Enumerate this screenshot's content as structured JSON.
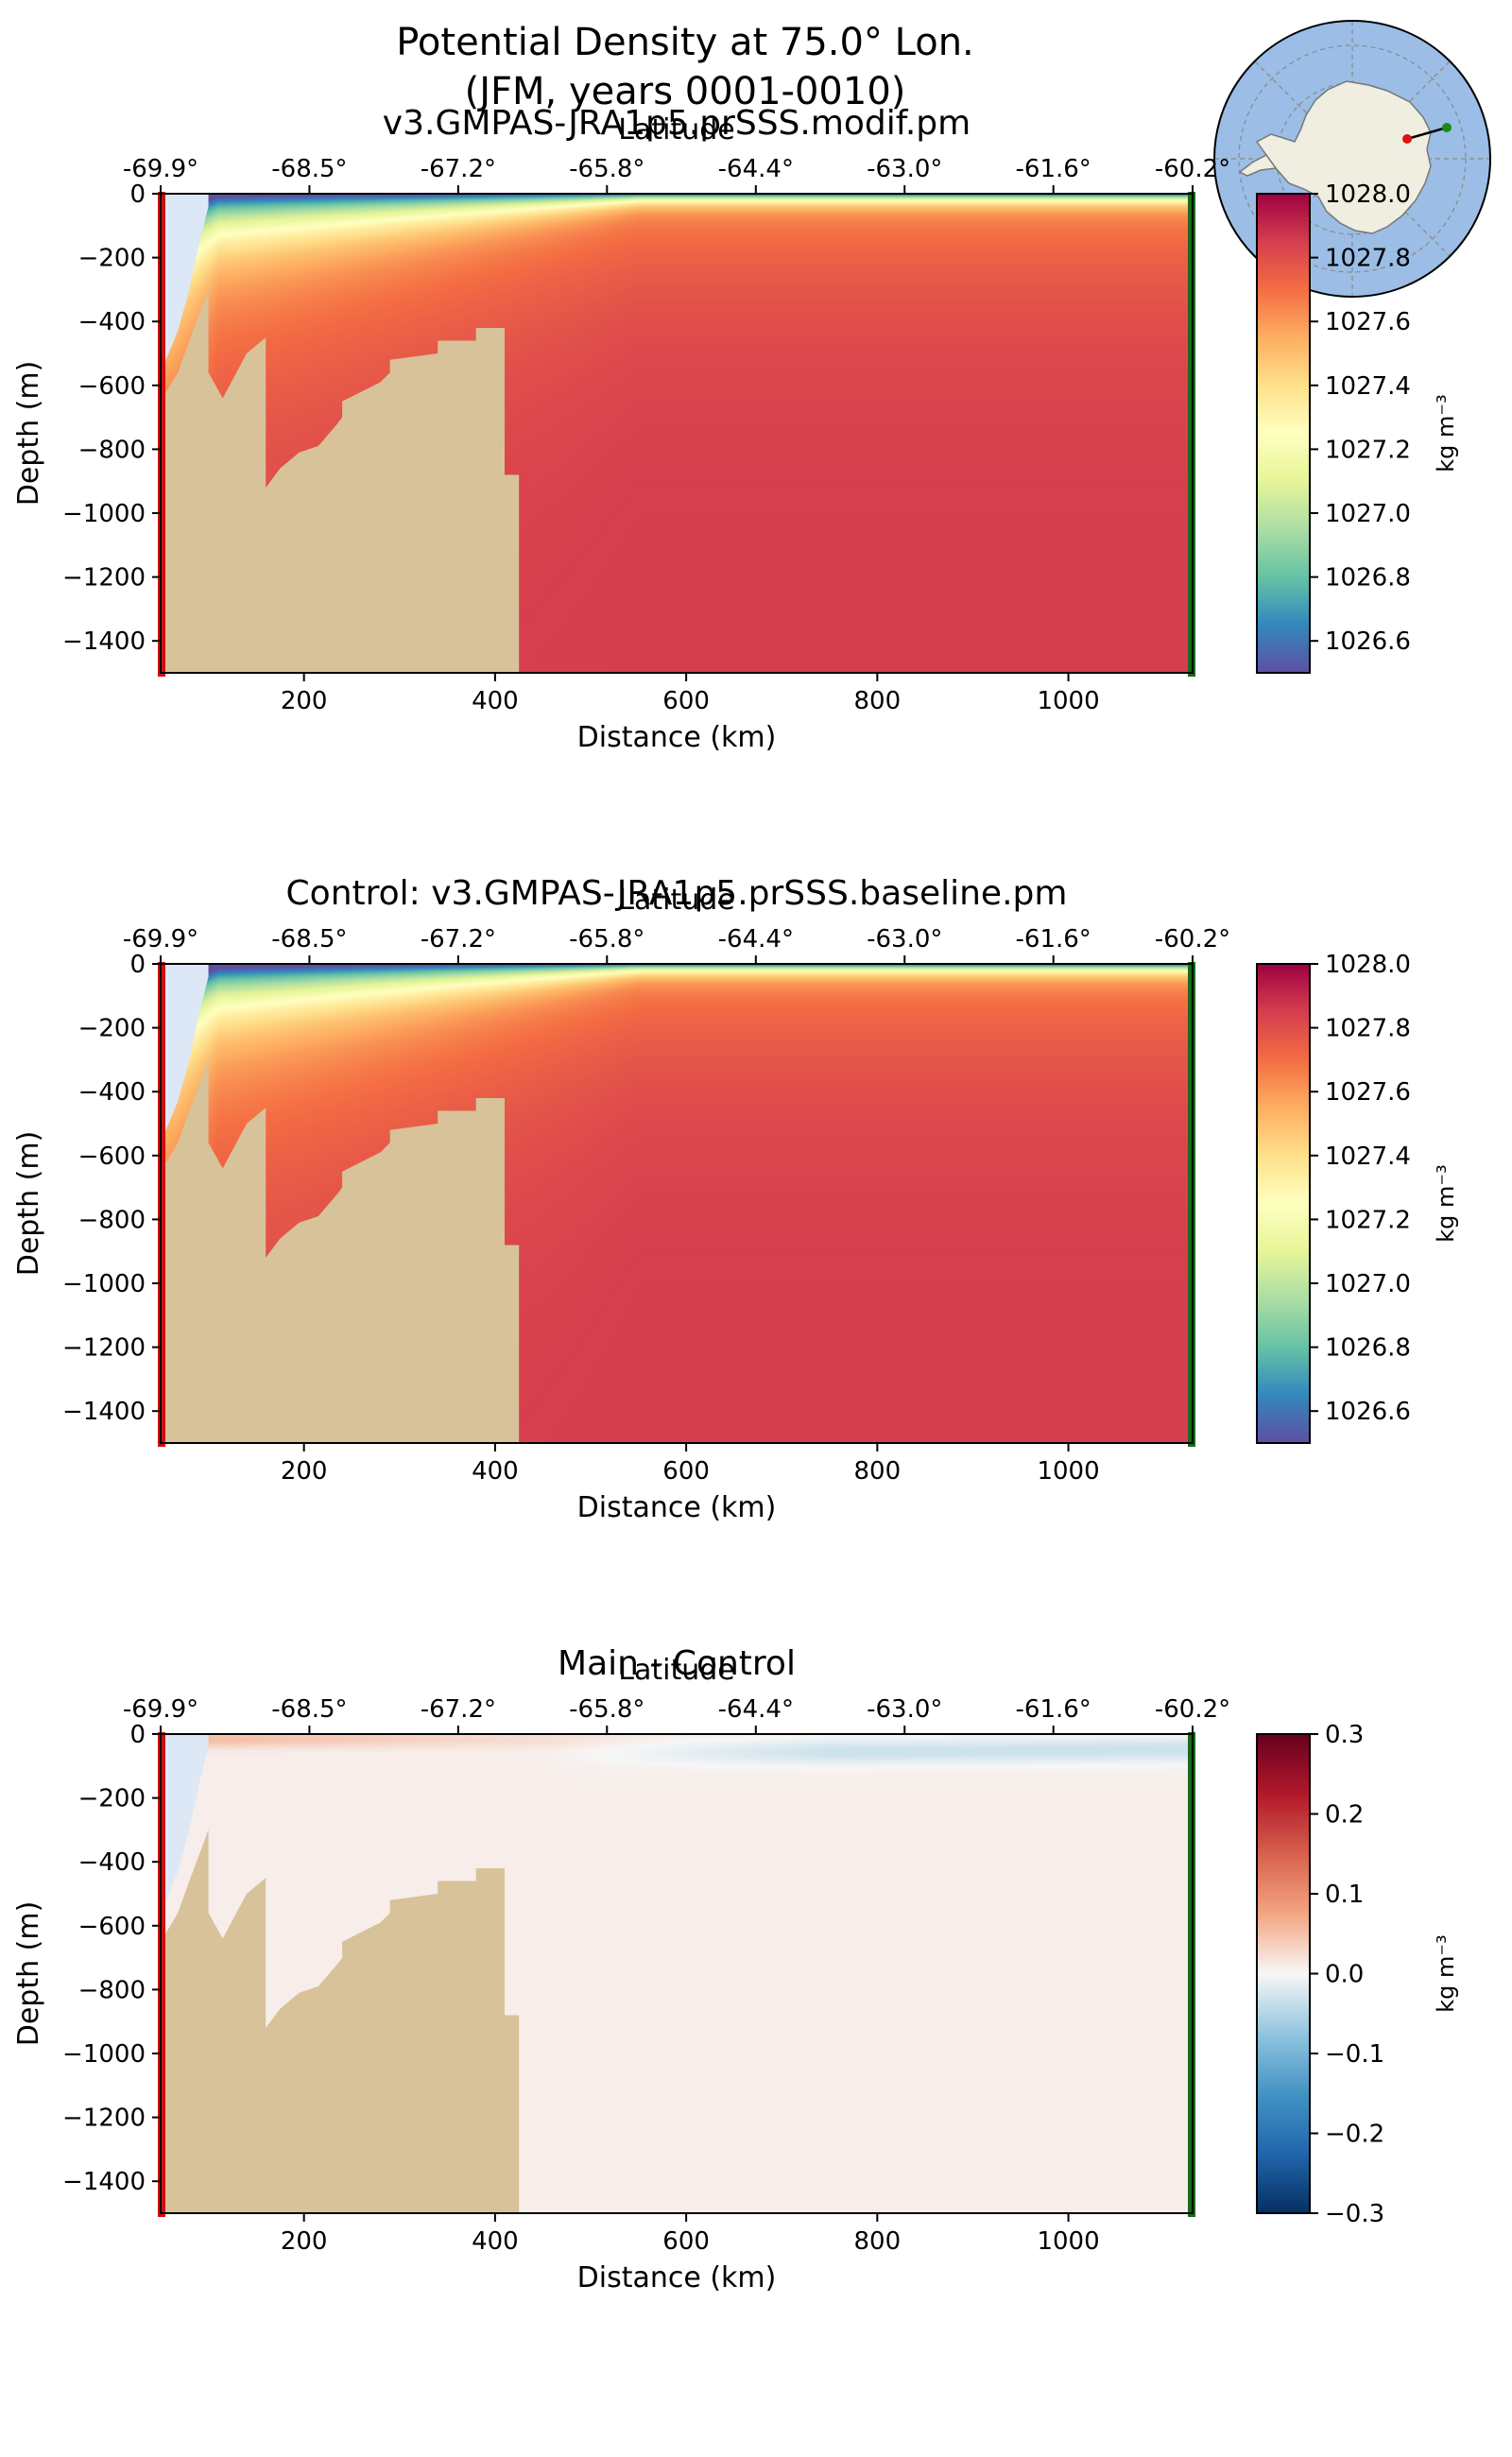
{
  "figure": {
    "title_line1": "Potential Density at 75.0° Lon.",
    "title_line2": "(JFM, years 0001-0010)"
  },
  "colors": {
    "land": "#d8c29a",
    "ice": "#dce8f6",
    "start_marker": "#cc1111",
    "end_marker": "#1a6b1a",
    "ocean": "#9bbde6",
    "antarctica": "#efeee0"
  },
  "chart_data": [
    {
      "type": "heatmap",
      "title": "v3.GMPAS-JRA1p5.prSSS.modif.pm",
      "xlabel": "Distance (km)",
      "ylabel": "Depth (m)",
      "top_xlabel": "Latitude",
      "xlim": [
        50,
        1130
      ],
      "ylim": [
        -1500,
        0
      ],
      "xticks": [
        200,
        400,
        600,
        800,
        1000
      ],
      "xtick_labels": [
        "200",
        "400",
        "600",
        "800",
        "1000"
      ],
      "yticks": [
        0,
        -200,
        -400,
        -600,
        -800,
        -1000,
        -1200,
        -1400
      ],
      "ytick_labels": [
        "0",
        "−200",
        "−400",
        "−600",
        "−800",
        "−1000",
        "−1200",
        "−1400"
      ],
      "top_ticks": [
        50,
        205.7,
        361.4,
        517.1,
        672.9,
        828.6,
        984.3,
        1130
      ],
      "top_tick_labels": [
        "-69.9°",
        "-68.5°",
        "-67.2°",
        "-65.8°",
        "-64.4°",
        "-63.0°",
        "-61.6°",
        "-60.2°"
      ],
      "colorbar": {
        "label": "kg m⁻³",
        "range": [
          1026.5,
          1028.0
        ],
        "ticks": [
          1028.0,
          1027.8,
          1027.6,
          1027.4,
          1027.2,
          1027.0,
          1026.8,
          1026.6
        ],
        "tick_labels": [
          "1028.0",
          "1027.8",
          "1027.6",
          "1027.4",
          "1027.2",
          "1027.0",
          "1026.8",
          "1026.6"
        ],
        "colormap": "Spectral_r"
      },
      "bathymetry": [
        [
          50,
          -1500
        ],
        [
          50,
          -650
        ],
        [
          68,
          -560
        ],
        [
          80,
          -460
        ],
        [
          90,
          -380
        ],
        [
          100,
          -300
        ],
        [
          100,
          -560
        ],
        [
          115,
          -640
        ],
        [
          140,
          -500
        ],
        [
          160,
          -450
        ],
        [
          160,
          -920
        ],
        [
          175,
          -860
        ],
        [
          195,
          -810
        ],
        [
          215,
          -790
        ],
        [
          235,
          -720
        ],
        [
          240,
          -700
        ],
        [
          240,
          -650
        ],
        [
          280,
          -590
        ],
        [
          290,
          -560
        ],
        [
          290,
          -520
        ],
        [
          340,
          -500
        ],
        [
          340,
          -460
        ],
        [
          380,
          -460
        ],
        [
          380,
          -420
        ],
        [
          410,
          -420
        ],
        [
          410,
          -880
        ],
        [
          425,
          -880
        ],
        [
          425,
          -1500
        ]
      ],
      "depth_profile": {
        "surface_min": 1026.55,
        "subsurface": 1027.6,
        "deep": 1027.85,
        "shelf_deep": 1027.7
      }
    },
    {
      "type": "heatmap",
      "title": "Control: v3.GMPAS-JRA1p5.prSSS.baseline.pm",
      "xlabel": "Distance (km)",
      "ylabel": "Depth (m)",
      "top_xlabel": "Latitude",
      "xlim": [
        50,
        1130
      ],
      "ylim": [
        -1500,
        0
      ],
      "xticks": [
        200,
        400,
        600,
        800,
        1000
      ],
      "xtick_labels": [
        "200",
        "400",
        "600",
        "800",
        "1000"
      ],
      "yticks": [
        0,
        -200,
        -400,
        -600,
        -800,
        -1000,
        -1200,
        -1400
      ],
      "ytick_labels": [
        "0",
        "−200",
        "−400",
        "−600",
        "−800",
        "−1000",
        "−1200",
        "−1400"
      ],
      "top_ticks": [
        50,
        205.7,
        361.4,
        517.1,
        672.9,
        828.6,
        984.3,
        1130
      ],
      "top_tick_labels": [
        "-69.9°",
        "-68.5°",
        "-67.2°",
        "-65.8°",
        "-64.4°",
        "-63.0°",
        "-61.6°",
        "-60.2°"
      ],
      "colorbar": {
        "label": "kg m⁻³",
        "range": [
          1026.5,
          1028.0
        ],
        "ticks": [
          1028.0,
          1027.8,
          1027.6,
          1027.4,
          1027.2,
          1027.0,
          1026.8,
          1026.6
        ],
        "tick_labels": [
          "1028.0",
          "1027.8",
          "1027.6",
          "1027.4",
          "1027.2",
          "1027.0",
          "1026.8",
          "1026.6"
        ],
        "colormap": "Spectral_r"
      },
      "bathymetry": [
        [
          50,
          -1500
        ],
        [
          50,
          -650
        ],
        [
          68,
          -560
        ],
        [
          80,
          -460
        ],
        [
          90,
          -380
        ],
        [
          100,
          -300
        ],
        [
          100,
          -560
        ],
        [
          115,
          -640
        ],
        [
          140,
          -500
        ],
        [
          160,
          -450
        ],
        [
          160,
          -920
        ],
        [
          175,
          -860
        ],
        [
          195,
          -810
        ],
        [
          215,
          -790
        ],
        [
          235,
          -720
        ],
        [
          240,
          -700
        ],
        [
          240,
          -650
        ],
        [
          280,
          -590
        ],
        [
          290,
          -560
        ],
        [
          290,
          -520
        ],
        [
          340,
          -500
        ],
        [
          340,
          -460
        ],
        [
          380,
          -460
        ],
        [
          380,
          -420
        ],
        [
          410,
          -420
        ],
        [
          410,
          -880
        ],
        [
          425,
          -880
        ],
        [
          425,
          -1500
        ]
      ],
      "depth_profile": {
        "surface_min": 1026.55,
        "subsurface": 1027.6,
        "deep": 1027.85,
        "shelf_deep": 1027.65
      }
    },
    {
      "type": "heatmap",
      "title": "Main - Control",
      "xlabel": "Distance (km)",
      "ylabel": "Depth (m)",
      "top_xlabel": "Latitude",
      "xlim": [
        50,
        1130
      ],
      "ylim": [
        -1500,
        0
      ],
      "xticks": [
        200,
        400,
        600,
        800,
        1000
      ],
      "xtick_labels": [
        "200",
        "400",
        "600",
        "800",
        "1000"
      ],
      "yticks": [
        0,
        -200,
        -400,
        -600,
        -800,
        -1000,
        -1200,
        -1400
      ],
      "ytick_labels": [
        "0",
        "−200",
        "−400",
        "−600",
        "−800",
        "−1000",
        "−1200",
        "−1400"
      ],
      "top_ticks": [
        50,
        205.7,
        361.4,
        517.1,
        672.9,
        828.6,
        984.3,
        1130
      ],
      "top_tick_labels": [
        "-69.9°",
        "-68.5°",
        "-67.2°",
        "-65.8°",
        "-64.4°",
        "-63.0°",
        "-61.6°",
        "-60.2°"
      ],
      "colorbar": {
        "label": "kg m⁻³",
        "range": [
          -0.3,
          0.3
        ],
        "ticks": [
          0.3,
          0.2,
          0.1,
          0.0,
          -0.1,
          -0.2,
          -0.3
        ],
        "tick_labels": [
          "0.3",
          "0.2",
          "0.1",
          "0.0",
          "−0.1",
          "−0.2",
          "−0.3"
        ],
        "colormap": "RdBu_r"
      },
      "bathymetry": [
        [
          50,
          -1500
        ],
        [
          50,
          -650
        ],
        [
          68,
          -560
        ],
        [
          80,
          -460
        ],
        [
          90,
          -380
        ],
        [
          100,
          -300
        ],
        [
          100,
          -560
        ],
        [
          115,
          -640
        ],
        [
          140,
          -500
        ],
        [
          160,
          -450
        ],
        [
          160,
          -920
        ],
        [
          175,
          -860
        ],
        [
          195,
          -810
        ],
        [
          215,
          -790
        ],
        [
          235,
          -720
        ],
        [
          240,
          -700
        ],
        [
          240,
          -650
        ],
        [
          280,
          -590
        ],
        [
          290,
          -560
        ],
        [
          290,
          -520
        ],
        [
          340,
          -500
        ],
        [
          340,
          -460
        ],
        [
          380,
          -460
        ],
        [
          380,
          -420
        ],
        [
          410,
          -420
        ],
        [
          410,
          -880
        ],
        [
          425,
          -880
        ],
        [
          425,
          -1500
        ]
      ],
      "difference_features": {
        "surface_positive_max": 0.05,
        "subsurface_negative_min": -0.04
      }
    }
  ]
}
